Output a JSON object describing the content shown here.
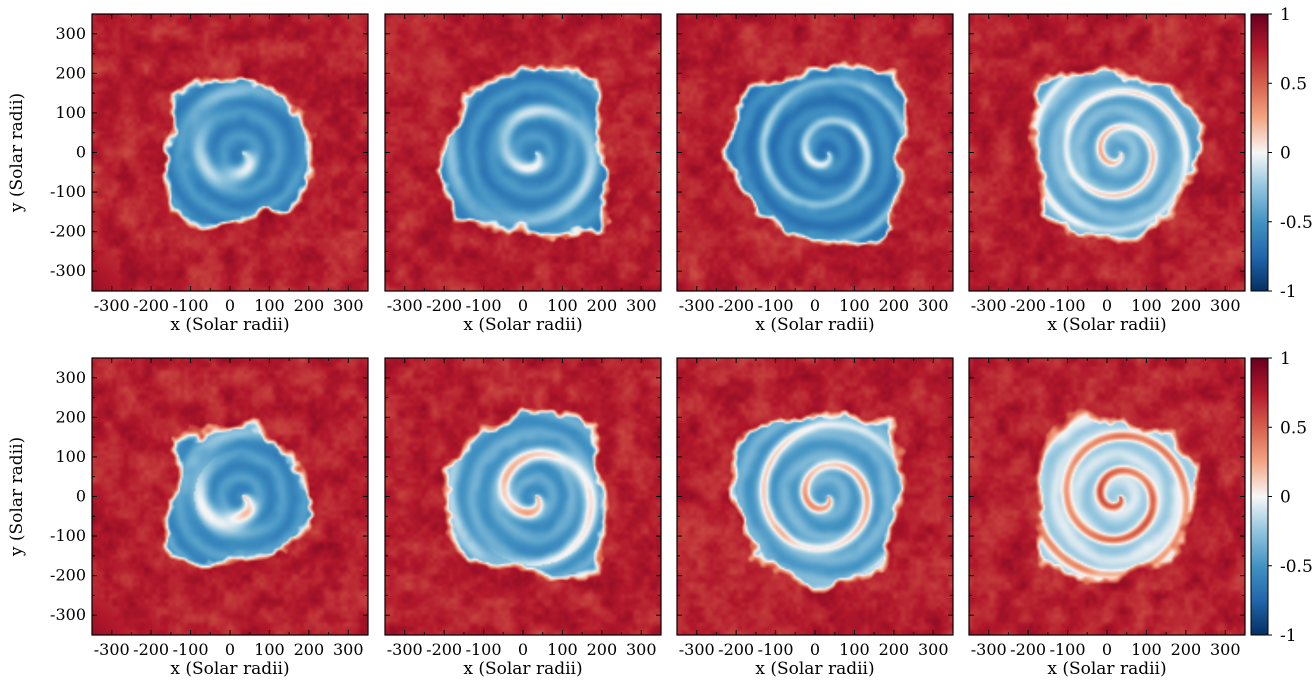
{
  "chart_data": {
    "type": "heatmap",
    "grid": {
      "rows": 2,
      "cols": 4
    },
    "xlabel": "x (Solar radii)",
    "ylabel": "y (Solar radii)",
    "xlim": [
      -350,
      350
    ],
    "ylim": [
      -350,
      350
    ],
    "x_ticks": [
      -300,
      -200,
      -100,
      0,
      100,
      200,
      300
    ],
    "y_ticks": [
      -300,
      -200,
      -100,
      0,
      100,
      200,
      300
    ],
    "x_tick_labels": [
      "-300",
      "-200",
      "-100",
      "0",
      "100",
      "200",
      "300"
    ],
    "y_tick_labels": [
      "-300",
      "-200",
      "-100",
      "0",
      "100",
      "200",
      "300"
    ],
    "colorbar": {
      "min": -1,
      "max": 1,
      "ticks": [
        1,
        0.5,
        0,
        -0.5,
        -1
      ],
      "tick_labels": [
        "1",
        "0.5",
        "0",
        "-0.5",
        "-1"
      ],
      "colormap": "RdBu_r",
      "stops": [
        "#053061",
        "#2166ac",
        "#4393c3",
        "#92c5de",
        "#f7f7f7",
        "#f4a582",
        "#d6604d",
        "#b2182b",
        "#67001f"
      ]
    },
    "panels": [
      {
        "row": 0,
        "col": 0,
        "spiral_turns": 1.4,
        "spiral_end": 0.34,
        "red_outer": 0.52,
        "center_value": -0.55
      },
      {
        "row": 0,
        "col": 1,
        "spiral_turns": 2.2,
        "spiral_end": 0.5,
        "red_outer": 0.6,
        "center_value": -0.55
      },
      {
        "row": 0,
        "col": 2,
        "spiral_turns": 3.0,
        "spiral_end": 0.62,
        "red_outer": 0.64,
        "center_value": -0.6
      },
      {
        "row": 0,
        "col": 3,
        "spiral_turns": 3.6,
        "spiral_end": 0.7,
        "red_outer": 0.6,
        "center_value": -0.35
      },
      {
        "row": 1,
        "col": 0,
        "spiral_turns": 1.4,
        "spiral_end": 0.34,
        "red_outer": 0.5,
        "center_value": -0.5
      },
      {
        "row": 1,
        "col": 1,
        "spiral_turns": 2.2,
        "spiral_end": 0.5,
        "red_outer": 0.58,
        "center_value": -0.45
      },
      {
        "row": 1,
        "col": 2,
        "spiral_turns": 3.0,
        "spiral_end": 0.62,
        "red_outer": 0.62,
        "center_value": -0.4
      },
      {
        "row": 1,
        "col": 3,
        "spiral_turns": 3.6,
        "spiral_end": 0.7,
        "red_outer": 0.58,
        "center_value": -0.15
      }
    ]
  }
}
